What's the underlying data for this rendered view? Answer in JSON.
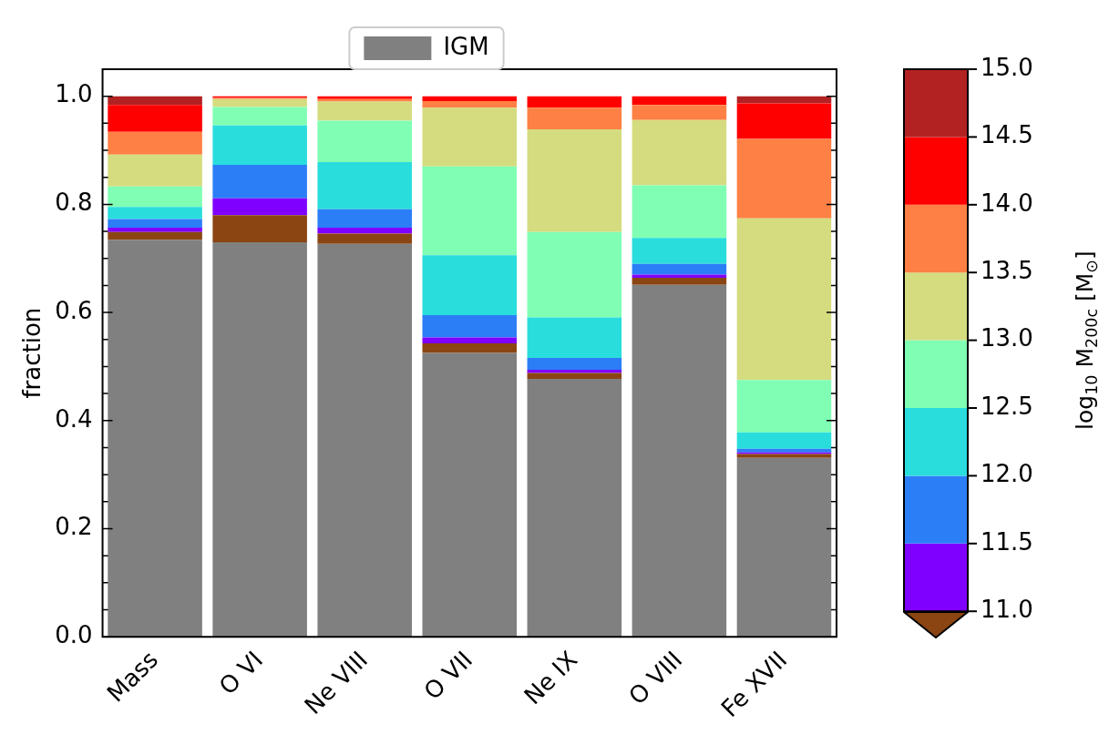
{
  "chart_data": {
    "type": "bar",
    "stacked": true,
    "legend": "top",
    "grid": false,
    "ylabel": "fraction",
    "categories": [
      "Mass",
      "O VI",
      "Ne VIII",
      "O VII",
      "Ne IX",
      "O VIII",
      "Fe XVII"
    ],
    "ylim": [
      0,
      1.05
    ],
    "yticks": [
      {
        "value": 0,
        "label": "0.0"
      },
      {
        "value": 0.05,
        "label": null
      },
      {
        "value": 0.1,
        "label": null
      },
      {
        "value": 0.15,
        "label": null
      },
      0.2,
      {
        "value": 0.25,
        "label": null
      },
      {
        "value": 0.3,
        "label": null
      },
      {
        "value": 0.35,
        "label": null
      },
      0.4,
      {
        "value": 0.45,
        "label": null
      },
      {
        "value": 0.5,
        "label": null
      },
      {
        "value": 0.55,
        "label": null
      },
      0.6,
      {
        "value": 0.65,
        "label": null
      },
      {
        "value": 0.7,
        "label": null
      },
      {
        "value": 0.75,
        "label": null
      },
      0.8,
      {
        "value": 0.85,
        "label": null
      },
      {
        "value": 0.9,
        "label": null
      },
      {
        "value": 0.95,
        "label": null
      },
      {
        "value": 1.0,
        "label": "1.0"
      }
    ],
    "clabel": "log$_{10}$ M$_{200c}$ [M$_{⊙}$]",
    "clim": [
      11,
      15
    ],
    "cticks": [
      {
        "value": 11,
        "label": "11.0"
      },
      {
        "value": 11.5,
        "label": "11.5"
      },
      {
        "value": 12,
        "label": "12.0"
      },
      {
        "value": 12.5,
        "label": "12.5"
      },
      {
        "value": 13,
        "label": "13.0"
      },
      {
        "value": 13.5,
        "label": "13.5"
      },
      {
        "value": 14,
        "label": "14.0"
      },
      {
        "value": 14.5,
        "label": "14.5"
      },
      {
        "value": 15,
        "label": "15.0"
      }
    ],
    "series": [
      {
        "name": "IGM",
        "color": "#808080",
        "values": [
          0.734,
          0.73,
          0.727,
          0.525,
          0.477,
          0.651,
          0.331
        ]
      },
      {
        "color": "#8b4513",
        "values": [
          0.015,
          0.05,
          0.019,
          0.018,
          0.011,
          0.013,
          0.007
        ]
      },
      {
        "color": "#8000ff",
        "values": [
          0.008,
          0.031,
          0.011,
          0.011,
          0.006,
          0.006,
          0.003
        ]
      },
      {
        "color": "#2c7ef7",
        "values": [
          0.016,
          0.062,
          0.034,
          0.041,
          0.022,
          0.02,
          0.007
        ]
      },
      {
        "color": "#2adddd",
        "values": [
          0.022,
          0.073,
          0.087,
          0.111,
          0.075,
          0.048,
          0.03
        ]
      },
      {
        "color": "#80ffb4",
        "values": [
          0.038,
          0.034,
          0.077,
          0.164,
          0.158,
          0.097,
          0.097
        ]
      },
      {
        "color": "#d4dc7f",
        "values": [
          0.059,
          0.015,
          0.035,
          0.109,
          0.19,
          0.121,
          0.299
        ]
      },
      {
        "color": "#ff8044",
        "values": [
          0.042,
          0.002,
          0.005,
          0.012,
          0.04,
          0.028,
          0.147
        ]
      },
      {
        "color": "#ff0000",
        "values": [
          0.05,
          0.003,
          0.005,
          0.009,
          0.021,
          0.016,
          0.066
        ]
      },
      {
        "color": "#b22222",
        "values": [
          0.016,
          0,
          0,
          0,
          0,
          0,
          0.013
        ]
      }
    ]
  }
}
